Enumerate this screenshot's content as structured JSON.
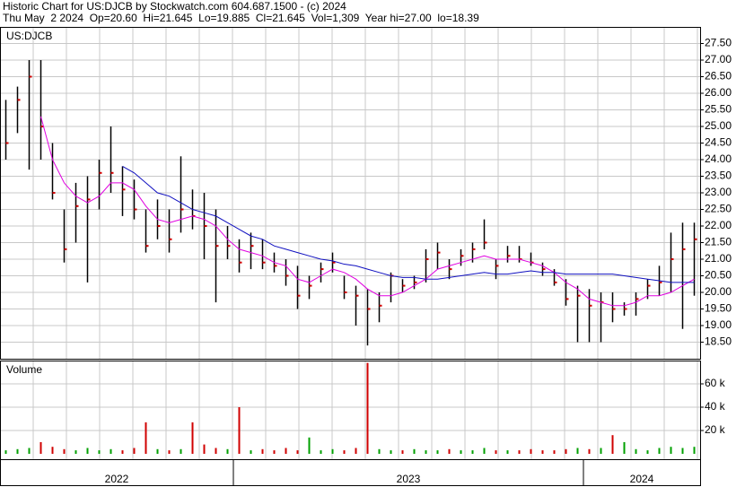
{
  "header": {
    "title": "Historic Chart for US:DJCB by Stockwatch.com 604.687.1500 - (c) 2024",
    "summary": "Thu May  2 2024  Op=20.60  Hi=21.645  Lo=19.885  Cl=21.645  Vol=1,309  Year hi=27.00  lo=18.39"
  },
  "x_axis": {
    "labels": [
      "2022",
      "2023",
      "2024"
    ],
    "breaks": [
      20,
      50
    ]
  },
  "chart_data": [
    {
      "type": "hlc",
      "label": "US:DJCB",
      "bar_color": "#000000",
      "close_color": "#d00000",
      "grid": true,
      "ylim": [
        18,
        28
      ],
      "yticks": [
        {
          "value": 18.5,
          "label": "18.50"
        },
        {
          "value": 19,
          "label": "19.00"
        },
        {
          "value": 19.5,
          "label": "19.50"
        },
        {
          "value": 20,
          "label": "20.00"
        },
        {
          "value": 20.5,
          "label": "20.50"
        },
        {
          "value": 21,
          "label": "21.00"
        },
        {
          "value": 21.5,
          "label": "21.50"
        },
        {
          "value": 22,
          "label": "22.00"
        },
        {
          "value": 22.5,
          "label": "22.50"
        },
        {
          "value": 23,
          "label": "23.00"
        },
        {
          "value": 23.5,
          "label": "23.50"
        },
        {
          "value": 24,
          "label": "24.00"
        },
        {
          "value": 24.5,
          "label": "24.50"
        },
        {
          "value": 25,
          "label": "25.00"
        },
        {
          "value": 25.5,
          "label": "25.50"
        },
        {
          "value": 26,
          "label": "26.00"
        },
        {
          "value": 26.5,
          "label": "26.50"
        },
        {
          "value": 27,
          "label": "27.00"
        },
        {
          "value": 27.5,
          "label": "27.50"
        }
      ],
      "high": [
        25.8,
        26.2,
        27.0,
        27.0,
        24.5,
        22.5,
        23.3,
        23.5,
        24.0,
        25.0,
        23.8,
        23.4,
        22.5,
        22.8,
        22.5,
        24.1,
        23.1,
        23.0,
        22.5,
        22.0,
        21.6,
        21.8,
        21.6,
        21.2,
        21.0,
        20.8,
        20.5,
        20.9,
        21.2,
        20.5,
        20.2,
        20.1,
        20.0,
        20.6,
        20.4,
        20.5,
        21.3,
        21.5,
        21.0,
        21.3,
        21.5,
        22.2,
        21.0,
        21.4,
        21.4,
        21.2,
        20.9,
        20.7,
        20.4,
        20.2,
        20.1,
        20.0,
        20.0,
        19.7,
        20.0,
        20.4,
        20.8,
        21.8,
        22.1,
        22.1
      ],
      "low": [
        24.0,
        24.8,
        23.7,
        24.0,
        22.8,
        20.9,
        21.5,
        20.3,
        22.5,
        23.0,
        22.3,
        22.2,
        21.2,
        21.6,
        21.2,
        21.8,
        21.9,
        21.0,
        19.7,
        21.0,
        20.6,
        20.7,
        20.7,
        20.6,
        20.2,
        19.5,
        19.8,
        20.3,
        20.6,
        19.8,
        19.0,
        18.4,
        19.1,
        19.7,
        20.0,
        20.1,
        20.3,
        20.7,
        20.4,
        20.8,
        20.9,
        21.3,
        20.4,
        20.9,
        20.9,
        20.8,
        20.5,
        20.2,
        19.6,
        18.5,
        18.5,
        18.5,
        19.1,
        19.3,
        19.3,
        19.8,
        19.9,
        20.0,
        18.9,
        19.9
      ],
      "close": [
        24.5,
        25.8,
        26.5,
        25.0,
        23.0,
        21.3,
        22.6,
        22.8,
        23.6,
        23.6,
        23.1,
        22.5,
        21.4,
        22.0,
        21.6,
        22.5,
        22.3,
        22.0,
        21.4,
        21.4,
        20.9,
        21.4,
        20.9,
        20.8,
        20.5,
        19.9,
        20.2,
        20.7,
        20.9,
        20.0,
        19.9,
        19.5,
        19.6,
        20.5,
        20.2,
        20.3,
        21.0,
        21.2,
        20.7,
        21.1,
        21.3,
        21.5,
        20.8,
        21.1,
        21.0,
        20.9,
        20.7,
        20.3,
        19.8,
        19.9,
        19.6,
        19.7,
        19.5,
        19.5,
        19.8,
        20.2,
        20.3,
        21.0,
        21.3,
        21.6
      ],
      "lines": [
        {
          "color": "#e000e0",
          "values": [
            null,
            null,
            null,
            25.3,
            24.0,
            23.3,
            22.9,
            22.7,
            22.9,
            23.3,
            23.3,
            23.1,
            22.6,
            22.2,
            22.1,
            22.2,
            22.3,
            22.2,
            22.0,
            21.6,
            21.3,
            21.2,
            21.1,
            20.9,
            20.8,
            20.4,
            20.3,
            20.5,
            20.7,
            20.6,
            20.4,
            20.1,
            19.9,
            19.9,
            20.0,
            20.2,
            20.4,
            20.7,
            20.8,
            20.9,
            21.0,
            21.1,
            21.0,
            21.0,
            21.0,
            20.9,
            20.8,
            20.6,
            20.3,
            20.1,
            19.8,
            19.7,
            19.6,
            19.6,
            19.7,
            19.9,
            19.9,
            20.0,
            20.2,
            20.4
          ]
        },
        {
          "color": "#1010c0",
          "values": [
            null,
            null,
            null,
            null,
            null,
            null,
            null,
            null,
            null,
            null,
            23.8,
            23.6,
            23.3,
            23.0,
            22.9,
            22.7,
            22.5,
            22.4,
            22.3,
            22.1,
            21.9,
            21.7,
            21.6,
            21.4,
            21.3,
            21.2,
            21.1,
            21.0,
            20.95,
            20.85,
            20.8,
            20.7,
            20.6,
            20.5,
            20.45,
            20.45,
            20.4,
            20.4,
            20.45,
            20.5,
            20.55,
            20.6,
            20.55,
            20.55,
            20.6,
            20.65,
            20.6,
            20.6,
            20.55,
            20.55,
            20.55,
            20.55,
            20.55,
            20.5,
            20.45,
            20.4,
            20.35,
            20.3,
            20.3,
            20.3
          ]
        }
      ]
    },
    {
      "type": "volume",
      "label": "Volume",
      "up_color": "#00a000",
      "down_color": "#d00000",
      "grid": true,
      "ylim": [
        0,
        80000
      ],
      "yticks": [
        {
          "value": 20000,
          "label": "20 k"
        },
        {
          "value": 40000,
          "label": "40 k"
        },
        {
          "value": 60000,
          "label": "60 k"
        }
      ],
      "values": [
        3000,
        4000,
        5000,
        10000,
        6000,
        4000,
        3000,
        5000,
        3000,
        4000,
        3000,
        5000,
        27000,
        4000,
        3000,
        4000,
        27000,
        8000,
        5000,
        4000,
        40000,
        3000,
        4000,
        3000,
        5000,
        3000,
        14000,
        3000,
        4000,
        3000,
        5000,
        78000,
        4000,
        3000,
        3000,
        4000,
        3000,
        3000,
        4000,
        3000,
        3000,
        5000,
        3000,
        3000,
        3000,
        4000,
        3000,
        3000,
        4000,
        5000,
        4000,
        5000,
        16000,
        10000,
        4000,
        3000,
        5000,
        6000,
        5000,
        6000
      ]
    }
  ]
}
